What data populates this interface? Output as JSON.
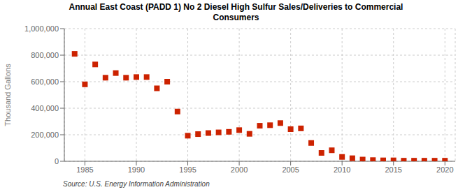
{
  "chart_data": {
    "type": "scatter",
    "title": "Annual East Coast (PADD 1) No 2 Diesel High Sulfur Sales/Deliveries to Commercial\nConsumers",
    "ylabel": "Thousand Gallons",
    "annotations": [
      "Source: U.S. Energy Information Administration"
    ],
    "x": [
      1984,
      1985,
      1986,
      1987,
      1988,
      1989,
      1990,
      1991,
      1992,
      1993,
      1994,
      1995,
      1996,
      1997,
      1998,
      1999,
      2000,
      2001,
      2002,
      2003,
      2004,
      2005,
      2006,
      2007,
      2008,
      2009,
      2010,
      2011,
      2012,
      2013,
      2014,
      2015,
      2016,
      2017,
      2018,
      2019,
      2020
    ],
    "values": [
      810000,
      580000,
      730000,
      630000,
      665000,
      630000,
      635000,
      635000,
      550000,
      600000,
      375000,
      193000,
      205000,
      213000,
      218000,
      222000,
      235000,
      207000,
      268000,
      272000,
      288000,
      242000,
      248000,
      138000,
      63000,
      83000,
      33000,
      23000,
      13000,
      9000,
      7000,
      7000,
      4500,
      4500,
      4500,
      4500,
      4500
    ],
    "color": "#cc2200",
    "marker": "square",
    "xlim": [
      1983,
      2021
    ],
    "xticks": [
      1985,
      1990,
      1995,
      2000,
      2005,
      2010,
      2015,
      2020
    ],
    "ylim": [
      0,
      1000000
    ],
    "yticks": [
      0,
      {
        "value": 200000,
        "label": "200,000"
      },
      {
        "value": 400000,
        "label": "400,000"
      },
      {
        "value": 600000,
        "label": "600,000"
      },
      {
        "value": 800000,
        "label": "800,000"
      },
      {
        "value": 1000000,
        "label": "1,000,000"
      }
    ],
    "grid": true
  }
}
